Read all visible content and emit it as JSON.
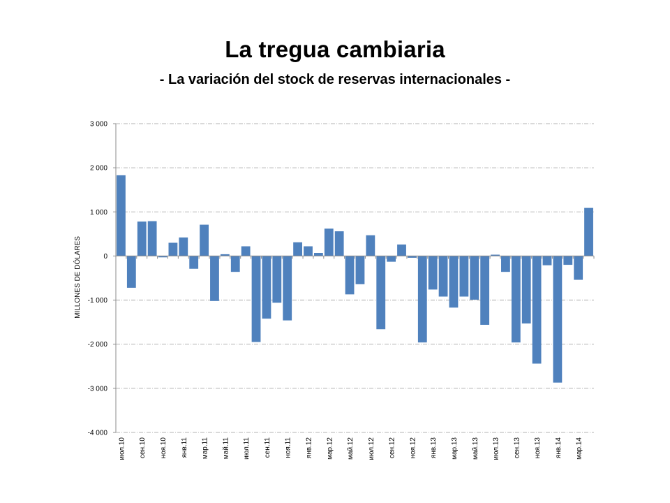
{
  "slide": {
    "title": "La tregua cambiaria",
    "subtitle": "- La variación del stock de reservas internacionales -"
  },
  "chart_data": {
    "type": "bar",
    "title": "",
    "xlabel": "",
    "ylabel": "MILLONES DE DÓLARES",
    "ylim": [
      -4000,
      3000
    ],
    "yticks": [
      3000,
      2000,
      1000,
      0,
      -1000,
      -2000,
      -3000,
      -4000
    ],
    "ytick_labels": [
      "3 000",
      "2 000",
      "1 000",
      "0",
      "-1 000",
      "-2 000",
      "-3 000",
      "-4 000"
    ],
    "grid": true,
    "legend": "none",
    "bar_color": "#4F81BD",
    "categories": [
      "июл.10",
      "авг.10",
      "сен.10",
      "окт.10",
      "ноя.10",
      "дек.10",
      "янв.11",
      "фев.11",
      "мар.11",
      "апр.11",
      "май.11",
      "июн.11",
      "июл.11",
      "авг.11",
      "сен.11",
      "окт.11",
      "ноя.11",
      "дек.11",
      "янв.12",
      "фев.12",
      "мар.12",
      "апр.12",
      "май.12",
      "июн.12",
      "июл.12",
      "авг.12",
      "сен.12",
      "окт.12",
      "ноя.12",
      "дек.12",
      "янв.13",
      "фев.13",
      "мар.13",
      "апр.13",
      "май.13",
      "июн.13",
      "июл.13",
      "авг.13",
      "сен.13",
      "окт.13",
      "ноя.13",
      "дек.13",
      "янв.14",
      "фев.14",
      "мар.14",
      "апр.14"
    ],
    "visible_tick_labels": [
      "июл.10",
      "сен.10",
      "ноя.10",
      "янв.11",
      "мар.11",
      "май.11",
      "июл.11",
      "сен.11",
      "ноя.11",
      "янв.12",
      "мар.12",
      "май.12",
      "июл.12",
      "сен.12",
      "ноя.12",
      "янв.13",
      "мар.13",
      "май.13",
      "июл.13",
      "сен.13",
      "ноя.13",
      "янв.14",
      "мар.14"
    ],
    "values": [
      1830,
      -720,
      780,
      790,
      -30,
      300,
      420,
      -290,
      710,
      -1020,
      40,
      -360,
      220,
      -1950,
      -1420,
      -1060,
      -1460,
      310,
      220,
      70,
      620,
      560,
      -870,
      -640,
      470,
      -1660,
      -130,
      260,
      -40,
      -1960,
      -760,
      -920,
      -1170,
      -920,
      -990,
      -1560,
      30,
      -360,
      -1960,
      -1530,
      -2440,
      -210,
      -2870,
      -200,
      -540,
      1090
    ]
  }
}
